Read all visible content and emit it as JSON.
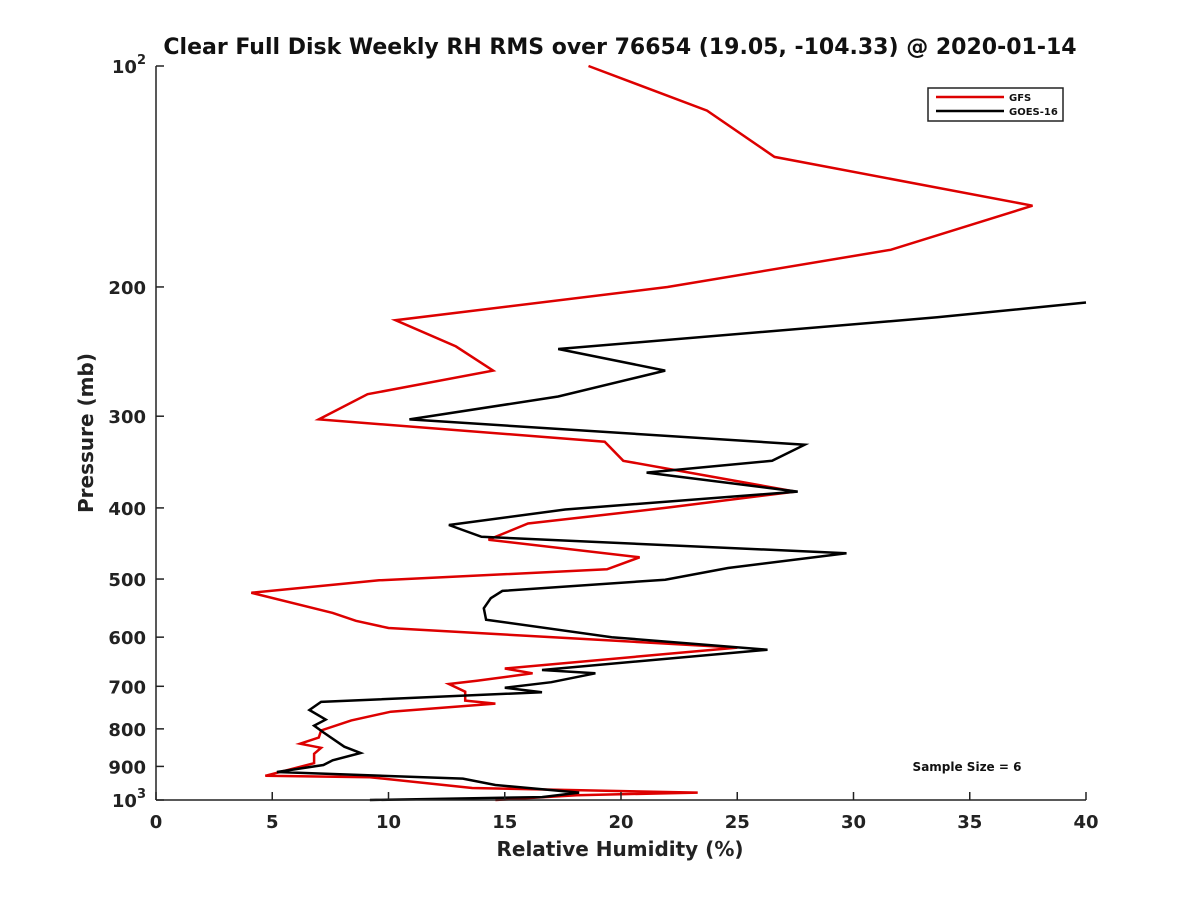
{
  "chart_data": {
    "type": "line",
    "title": "Clear Full Disk Weekly RH RMS over 76654 (19.05, -104.33) @ 2020-01-14",
    "xlabel": "Relative Humidity (%)",
    "ylabel": "Pressure (mb)",
    "xlim": [
      0,
      40
    ],
    "ylim": [
      100,
      1000
    ],
    "yscale": "log",
    "y_reversed": true,
    "grid": false,
    "x_ticks": [
      0,
      5,
      10,
      15,
      20,
      25,
      30,
      35,
      40
    ],
    "x_tick_labels": [
      "0",
      "5",
      "10",
      "15",
      "20",
      "25",
      "30",
      "35",
      "40"
    ],
    "y_ticks": [
      100,
      200,
      300,
      400,
      500,
      600,
      700,
      800,
      900,
      1000
    ],
    "y_tick_labels": [
      {
        "base": "10",
        "exp": "2"
      },
      {
        "base": "200",
        "exp": ""
      },
      {
        "base": "300",
        "exp": ""
      },
      {
        "base": "400",
        "exp": ""
      },
      {
        "base": "500",
        "exp": ""
      },
      {
        "base": "600",
        "exp": ""
      },
      {
        "base": "700",
        "exp": ""
      },
      {
        "base": "800",
        "exp": ""
      },
      {
        "base": "900",
        "exp": ""
      },
      {
        "base": "10",
        "exp": "3"
      }
    ],
    "legend_position": "top-right",
    "annotation": "Sample Size = 6",
    "series": [
      {
        "name": "GFS",
        "color": "#dd0000",
        "points": [
          [
            18.6,
            100
          ],
          [
            23.7,
            115
          ],
          [
            26.6,
            133
          ],
          [
            37.7,
            155
          ],
          [
            31.6,
            178
          ],
          [
            22.0,
            200
          ],
          [
            10.3,
            222
          ],
          [
            12.9,
            241
          ],
          [
            14.5,
            260
          ],
          [
            9.1,
            280
          ],
          [
            7.0,
            303
          ],
          [
            19.3,
            325
          ],
          [
            20.1,
            345
          ],
          [
            27.5,
            380
          ],
          [
            21.9,
            400
          ],
          [
            16.0,
            420
          ],
          [
            14.3,
            442
          ],
          [
            20.8,
            467
          ],
          [
            19.4,
            485
          ],
          [
            9.6,
            502
          ],
          [
            4.1,
            522
          ],
          [
            7.6,
            556
          ],
          [
            8.6,
            570
          ],
          [
            10.0,
            583
          ],
          [
            25.0,
            620
          ],
          [
            15.0,
            662
          ],
          [
            16.2,
            672
          ],
          [
            13.8,
            688
          ],
          [
            12.6,
            695
          ],
          [
            13.3,
            712
          ],
          [
            13.3,
            732
          ],
          [
            14.6,
            739
          ],
          [
            10.1,
            758
          ],
          [
            8.4,
            779
          ],
          [
            7.1,
            804
          ],
          [
            7.0,
            822
          ],
          [
            6.2,
            838
          ],
          [
            7.1,
            849
          ],
          [
            6.8,
            865
          ],
          [
            6.8,
            891
          ],
          [
            4.7,
            927
          ],
          [
            9.2,
            931
          ],
          [
            13.6,
            963
          ],
          [
            23.3,
            977
          ],
          [
            18.1,
            985
          ],
          [
            14.6,
            1000
          ]
        ]
      },
      {
        "name": "GOES-16",
        "color": "#000000",
        "points": [
          [
            40.0,
            210
          ],
          [
            33.6,
            220
          ],
          [
            17.3,
            243
          ],
          [
            21.9,
            260
          ],
          [
            17.3,
            282
          ],
          [
            10.9,
            303
          ],
          [
            27.9,
            328
          ],
          [
            26.5,
            345
          ],
          [
            21.1,
            358
          ],
          [
            27.6,
            380
          ],
          [
            17.6,
            402
          ],
          [
            12.6,
            422
          ],
          [
            14.0,
            438
          ],
          [
            29.7,
            461
          ],
          [
            24.6,
            483
          ],
          [
            21.9,
            501
          ],
          [
            14.9,
            519
          ],
          [
            14.4,
            531
          ],
          [
            14.1,
            548
          ],
          [
            14.2,
            568
          ],
          [
            19.6,
            600
          ],
          [
            26.3,
            624
          ],
          [
            16.6,
            665
          ],
          [
            18.9,
            672
          ],
          [
            17.0,
            691
          ],
          [
            15.0,
            703
          ],
          [
            16.6,
            713
          ],
          [
            7.1,
            735
          ],
          [
            6.6,
            754
          ],
          [
            7.3,
            777
          ],
          [
            6.8,
            792
          ],
          [
            7.2,
            809
          ],
          [
            8.1,
            846
          ],
          [
            8.8,
            863
          ],
          [
            7.6,
            883
          ],
          [
            7.2,
            896
          ],
          [
            5.2,
            916
          ],
          [
            13.2,
            935
          ],
          [
            14.6,
            954
          ],
          [
            18.2,
            977
          ],
          [
            16.6,
            991
          ],
          [
            9.2,
            1000
          ]
        ]
      }
    ]
  }
}
